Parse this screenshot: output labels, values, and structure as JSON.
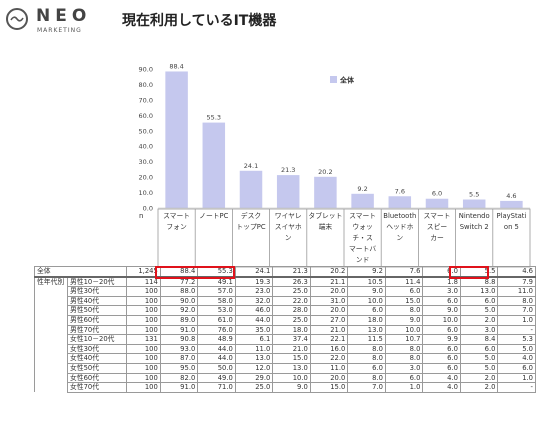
{
  "brand": {
    "name": "NEO",
    "tagline": "MARKETING"
  },
  "title": "現在利用しているIT機器",
  "n_label": "n",
  "legend_label": "全体",
  "colors": {
    "bar": "#c5c8ee",
    "highlight": "#e0121b",
    "grid_border": "#9a9a9a"
  },
  "chart_data": {
    "type": "bar",
    "title": "現在利用しているIT機器",
    "categories": [
      [
        "スマート",
        "フォン"
      ],
      [
        "ノートPC"
      ],
      [
        "デスク",
        "トップPC"
      ],
      [
        "ワイヤレ",
        "スイヤホ",
        "ン"
      ],
      [
        "タブレット",
        "端末"
      ],
      [
        "スマート",
        "ウォッ",
        "チ・ス",
        "マートバ",
        "ンド"
      ],
      [
        "Bluetooth",
        "ヘッドホ",
        "ン"
      ],
      [
        "スマート",
        "スピー",
        "カー"
      ],
      [
        "Nintendo",
        "Switch 2"
      ],
      [
        "PlayStati",
        "on 5"
      ]
    ],
    "series": [
      {
        "name": "全体",
        "values": [
          88.4,
          55.3,
          24.1,
          21.3,
          20.2,
          9.2,
          7.6,
          6.0,
          5.5,
          4.6
        ]
      }
    ],
    "value_labels": [
      "88.4",
      "55.3",
      "24.1",
      "21.3",
      "20.2",
      "9.2",
      "7.6",
      "6.0",
      "5.5",
      "4.6"
    ],
    "yticks": [
      "90.0",
      "80.0",
      "70.0",
      "60.0",
      "50.0",
      "40.0",
      "30.0",
      "20.0",
      "10.0",
      "0.0"
    ],
    "ylim": [
      0,
      90
    ],
    "legend": "top-right",
    "grid": false
  },
  "table": {
    "group_label": "性年代別",
    "rows": [
      {
        "label": "全体",
        "n": "1,245",
        "vals": [
          "88.4",
          "55.3",
          "24.1",
          "21.3",
          "20.2",
          "9.2",
          "7.6",
          "6.0",
          "5.5",
          "4.6"
        ]
      },
      {
        "label": "男性10－20代",
        "n": "114",
        "vals": [
          "77.2",
          "49.1",
          "19.3",
          "26.3",
          "21.1",
          "10.5",
          "11.4",
          "1.8",
          "8.8",
          "7.9"
        ]
      },
      {
        "label": "男性30代",
        "n": "100",
        "vals": [
          "88.0",
          "57.0",
          "23.0",
          "25.0",
          "20.0",
          "9.0",
          "6.0",
          "3.0",
          "13.0",
          "11.0"
        ]
      },
      {
        "label": "男性40代",
        "n": "100",
        "vals": [
          "90.0",
          "58.0",
          "32.0",
          "22.0",
          "31.0",
          "10.0",
          "15.0",
          "6.0",
          "6.0",
          "8.0"
        ]
      },
      {
        "label": "男性50代",
        "n": "100",
        "vals": [
          "92.0",
          "53.0",
          "46.0",
          "28.0",
          "20.0",
          "6.0",
          "8.0",
          "9.0",
          "5.0",
          "7.0"
        ]
      },
      {
        "label": "男性60代",
        "n": "100",
        "vals": [
          "89.0",
          "61.0",
          "44.0",
          "25.0",
          "27.0",
          "18.0",
          "9.0",
          "10.0",
          "2.0",
          "1.0"
        ]
      },
      {
        "label": "男性70代",
        "n": "100",
        "vals": [
          "91.0",
          "76.0",
          "35.0",
          "18.0",
          "21.0",
          "13.0",
          "10.0",
          "6.0",
          "3.0",
          "-"
        ]
      },
      {
        "label": "女性10－20代",
        "n": "131",
        "vals": [
          "90.8",
          "48.9",
          "6.1",
          "37.4",
          "22.1",
          "11.5",
          "10.7",
          "9.9",
          "8.4",
          "5.3"
        ]
      },
      {
        "label": "女性30代",
        "n": "100",
        "vals": [
          "93.0",
          "44.0",
          "11.0",
          "21.0",
          "16.0",
          "8.0",
          "8.0",
          "6.0",
          "6.0",
          "5.0"
        ]
      },
      {
        "label": "女性40代",
        "n": "100",
        "vals": [
          "87.0",
          "44.0",
          "13.0",
          "15.0",
          "22.0",
          "8.0",
          "8.0",
          "6.0",
          "5.0",
          "4.0"
        ]
      },
      {
        "label": "女性50代",
        "n": "100",
        "vals": [
          "95.0",
          "50.0",
          "12.0",
          "13.0",
          "11.0",
          "6.0",
          "3.0",
          "6.0",
          "5.0",
          "6.0"
        ]
      },
      {
        "label": "女性60代",
        "n": "100",
        "vals": [
          "82.0",
          "49.0",
          "29.0",
          "10.0",
          "20.0",
          "8.0",
          "6.0",
          "4.0",
          "2.0",
          "1.0"
        ]
      },
      {
        "label": "女性70代",
        "n": "100",
        "vals": [
          "91.0",
          "71.0",
          "25.0",
          "9.0",
          "15.0",
          "7.0",
          "1.0",
          "4.0",
          "2.0",
          "-"
        ]
      }
    ]
  }
}
